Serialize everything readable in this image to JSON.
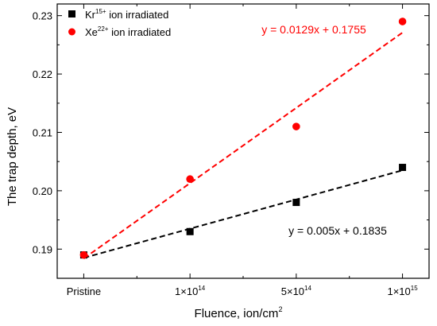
{
  "chart_data": {
    "type": "scatter",
    "xlabel": "Fluence, ion/cm",
    "xlabel_sup": "2",
    "ylabel": "The trap depth, eV",
    "x_categories": [
      {
        "label": "Pristine",
        "base": "",
        "sup": ""
      },
      {
        "label": "1×10",
        "base": "1×10",
        "sup": "14"
      },
      {
        "label": "5×10",
        "base": "5×10",
        "sup": "14"
      },
      {
        "label": "1×10",
        "base": "1×10",
        "sup": "15"
      }
    ],
    "ylim": [
      0.185,
      0.232
    ],
    "yticks": [
      0.19,
      0.2,
      0.21,
      0.22,
      0.23
    ],
    "ytick_labels": [
      "0.19",
      "0.20",
      "0.21",
      "0.22",
      "0.23"
    ],
    "series": [
      {
        "name_base": "Kr",
        "name_sup": "15+",
        "name_rest": " ion irradiated",
        "marker": "square",
        "color": "#000000",
        "x": [
          0,
          1,
          2,
          3
        ],
        "y": [
          0.189,
          0.193,
          0.198,
          0.204
        ],
        "fit": {
          "slope": 0.005,
          "intercept": 0.1835,
          "x_start": 1,
          "x_end": 4,
          "equation": "y = 0.005x + 0.1835"
        }
      },
      {
        "name_base": "Xe",
        "name_sup": "22+",
        "name_rest": " ion irradiated",
        "marker": "circle",
        "color": "#ff0000",
        "x": [
          0,
          1,
          2,
          3
        ],
        "y": [
          0.189,
          0.202,
          0.211,
          0.229
        ],
        "fit": {
          "slope": 0.0129,
          "intercept": 0.1755,
          "x_start": 1,
          "x_end": 4,
          "equation": "y = 0.0129x + 0.1755"
        }
      }
    ],
    "legend": "top-left",
    "grid": false
  }
}
